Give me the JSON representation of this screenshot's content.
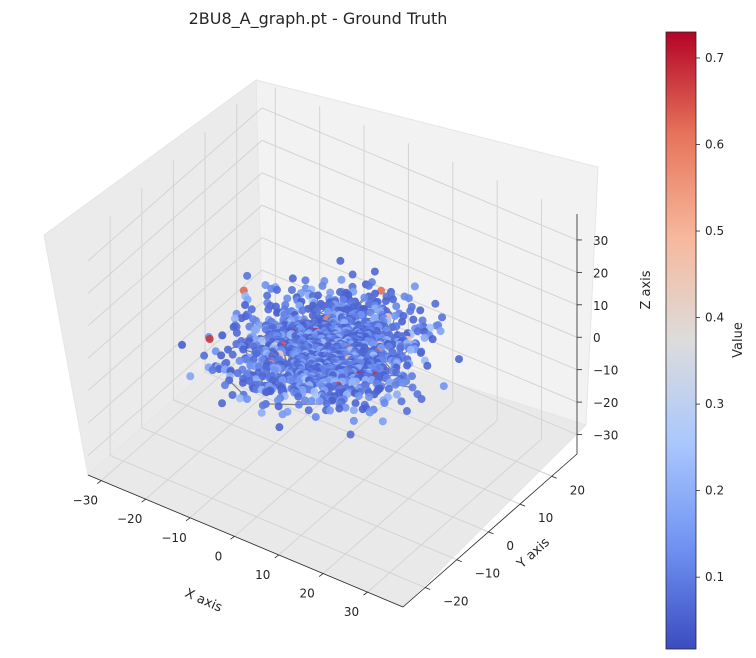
{
  "chart_data": {
    "type": "scatter",
    "title": "2BU8_A_graph.pt - Ground Truth",
    "xlabel": "X axis",
    "ylabel": "Y axis",
    "zlabel": "Z axis",
    "x_ticks": [
      "−30",
      "−20",
      "−10",
      "0",
      "10",
      "20",
      "30"
    ],
    "y_ticks": [
      "−20",
      "−10",
      "0",
      "10",
      "20"
    ],
    "z_ticks": [
      "30",
      "20",
      "10",
      "0",
      "−10",
      "−20",
      "−30"
    ],
    "xlim": [
      -33,
      38
    ],
    "ylim": [
      -27,
      28
    ],
    "zlim": [
      -36,
      38
    ],
    "colorbar": {
      "label": "Value",
      "colormap": "coolwarm",
      "range": [
        0.017,
        0.73
      ],
      "ticks": [
        "0.7",
        "0.6",
        "0.5",
        "0.4",
        "0.3",
        "0.2",
        "0.1"
      ],
      "colors": [
        "#3b4cc0",
        "#7093f3",
        "#aac7fd",
        "#dddcdc",
        "#f7b89c",
        "#e7745b",
        "#b40426"
      ]
    },
    "edge_color": "#808080",
    "grid": true
  }
}
